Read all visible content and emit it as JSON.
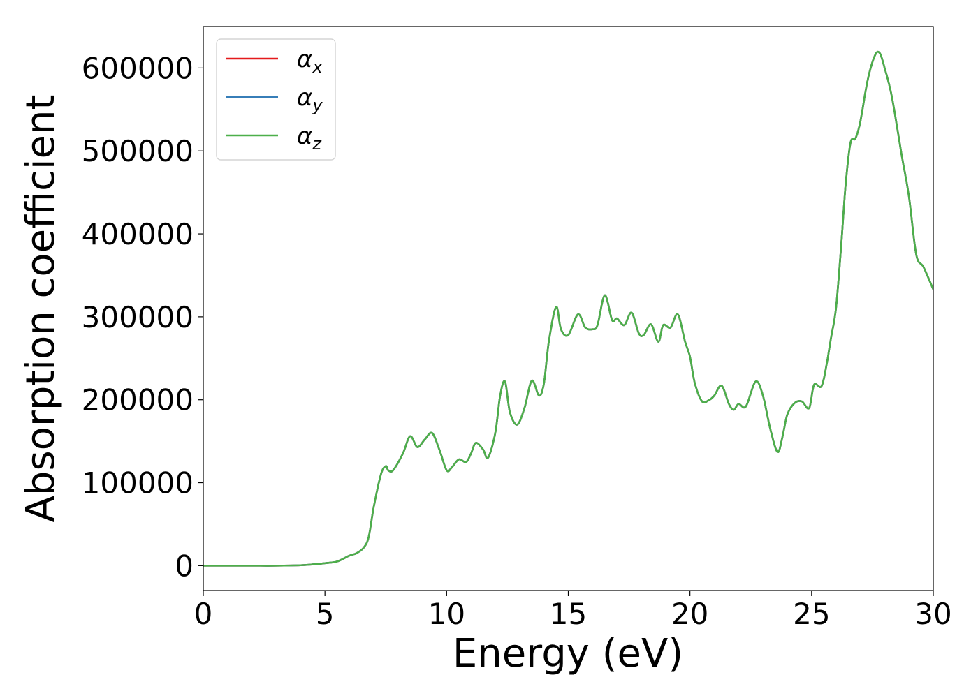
{
  "chart_data": {
    "type": "line",
    "title": "",
    "xlabel": "Energy (eV)",
    "ylabel": "Absorption coefficient",
    "xlim": [
      0,
      30
    ],
    "ylim": [
      -30000,
      650000
    ],
    "xticks": [
      0,
      5,
      10,
      15,
      20,
      25,
      30
    ],
    "yticks": [
      0,
      100000,
      200000,
      300000,
      400000,
      500000,
      600000
    ],
    "xtick_labels": [
      "0",
      "5",
      "10",
      "15",
      "20",
      "25",
      "30"
    ],
    "ytick_labels": [
      "0",
      "100000",
      "200000",
      "300000",
      "400000",
      "500000",
      "600000"
    ],
    "grid": false,
    "legend_position": "top-left",
    "x": [
      0,
      1,
      2,
      3,
      4,
      4.5,
      5,
      5.5,
      6,
      6.3,
      6.6,
      6.8,
      7,
      7.3,
      7.5,
      7.6,
      7.8,
      8.2,
      8.5,
      8.8,
      9.1,
      9.4,
      9.7,
      10,
      10.2,
      10.5,
      10.8,
      11,
      11.2,
      11.5,
      11.7,
      12,
      12.2,
      12.4,
      12.6,
      12.9,
      13.2,
      13.5,
      13.8,
      14.0,
      14.2,
      14.5,
      14.7,
      15.0,
      15.4,
      15.7,
      16.0,
      16.2,
      16.5,
      16.8,
      17.0,
      17.3,
      17.6,
      17.9,
      18.1,
      18.4,
      18.7,
      18.9,
      19.2,
      19.5,
      19.8,
      20.0,
      20.2,
      20.5,
      20.8,
      21.0,
      21.3,
      21.6,
      21.8,
      22.0,
      22.3,
      22.7,
      23.0,
      23.3,
      23.6,
      23.8,
      24.0,
      24.3,
      24.6,
      24.9,
      25.1,
      25.4,
      25.6,
      25.8,
      26.0,
      26.2,
      26.4,
      26.6,
      26.8,
      27.0,
      27.3,
      27.6,
      27.8,
      28.0,
      28.3,
      28.7,
      29.0,
      29.3,
      29.6,
      30.0
    ],
    "series": [
      {
        "name": "α_x",
        "name_symbol": "α",
        "name_sub": "x",
        "color": "#e41a1c",
        "values": [
          0,
          0,
          0,
          0,
          500,
          1500,
          3000,
          5000,
          12000,
          15000,
          22000,
          35000,
          70000,
          110000,
          120000,
          115000,
          115000,
          135000,
          156000,
          143000,
          152000,
          160000,
          140000,
          115000,
          118000,
          128000,
          125000,
          135000,
          148000,
          140000,
          130000,
          160000,
          205000,
          222000,
          185000,
          170000,
          190000,
          223000,
          205000,
          220000,
          270000,
          312000,
          285000,
          278000,
          303000,
          287000,
          285000,
          290000,
          326000,
          296000,
          298000,
          290000,
          305000,
          280000,
          278000,
          291000,
          270000,
          290000,
          287000,
          303000,
          270000,
          252000,
          220000,
          198000,
          200000,
          205000,
          217000,
          195000,
          188000,
          195000,
          192000,
          222000,
          205000,
          165000,
          137000,
          155000,
          182000,
          196000,
          198000,
          190000,
          218000,
          216000,
          240000,
          275000,
          310000,
          380000,
          460000,
          510000,
          515000,
          535000,
          585000,
          615000,
          618000,
          600000,
          565000,
          495000,
          445000,
          375000,
          360000,
          333000
        ]
      },
      {
        "name": "α_y",
        "name_symbol": "α",
        "name_sub": "y",
        "color": "#377eb8",
        "values": [
          0,
          0,
          0,
          0,
          500,
          1500,
          3000,
          5000,
          12000,
          15000,
          22000,
          35000,
          70000,
          110000,
          120000,
          115000,
          115000,
          135000,
          156000,
          143000,
          152000,
          160000,
          140000,
          115000,
          118000,
          128000,
          125000,
          135000,
          148000,
          140000,
          130000,
          160000,
          205000,
          222000,
          185000,
          170000,
          190000,
          223000,
          205000,
          220000,
          270000,
          312000,
          285000,
          278000,
          303000,
          287000,
          285000,
          290000,
          326000,
          296000,
          298000,
          290000,
          305000,
          280000,
          278000,
          291000,
          270000,
          290000,
          287000,
          303000,
          270000,
          252000,
          220000,
          198000,
          200000,
          205000,
          217000,
          195000,
          188000,
          195000,
          192000,
          222000,
          205000,
          165000,
          137000,
          155000,
          182000,
          196000,
          198000,
          190000,
          218000,
          216000,
          240000,
          275000,
          310000,
          380000,
          460000,
          510000,
          515000,
          535000,
          585000,
          615000,
          618000,
          600000,
          565000,
          495000,
          445000,
          375000,
          360000,
          333000
        ]
      },
      {
        "name": "α_z",
        "name_symbol": "α",
        "name_sub": "z",
        "color": "#4daf4a",
        "values": [
          0,
          0,
          0,
          0,
          500,
          1500,
          3000,
          5000,
          12000,
          15000,
          22000,
          35000,
          70000,
          110000,
          120000,
          115000,
          115000,
          135000,
          156000,
          143000,
          152000,
          160000,
          140000,
          115000,
          118000,
          128000,
          125000,
          135000,
          148000,
          140000,
          130000,
          160000,
          205000,
          222000,
          185000,
          170000,
          190000,
          223000,
          205000,
          220000,
          270000,
          312000,
          285000,
          278000,
          303000,
          287000,
          285000,
          290000,
          326000,
          296000,
          298000,
          290000,
          305000,
          280000,
          278000,
          291000,
          270000,
          290000,
          287000,
          303000,
          270000,
          252000,
          220000,
          198000,
          200000,
          205000,
          217000,
          195000,
          188000,
          195000,
          192000,
          222000,
          205000,
          165000,
          137000,
          155000,
          182000,
          196000,
          198000,
          190000,
          218000,
          216000,
          240000,
          275000,
          310000,
          380000,
          460000,
          510000,
          515000,
          535000,
          585000,
          615000,
          618000,
          600000,
          565000,
          495000,
          445000,
          375000,
          360000,
          333000
        ]
      }
    ]
  }
}
